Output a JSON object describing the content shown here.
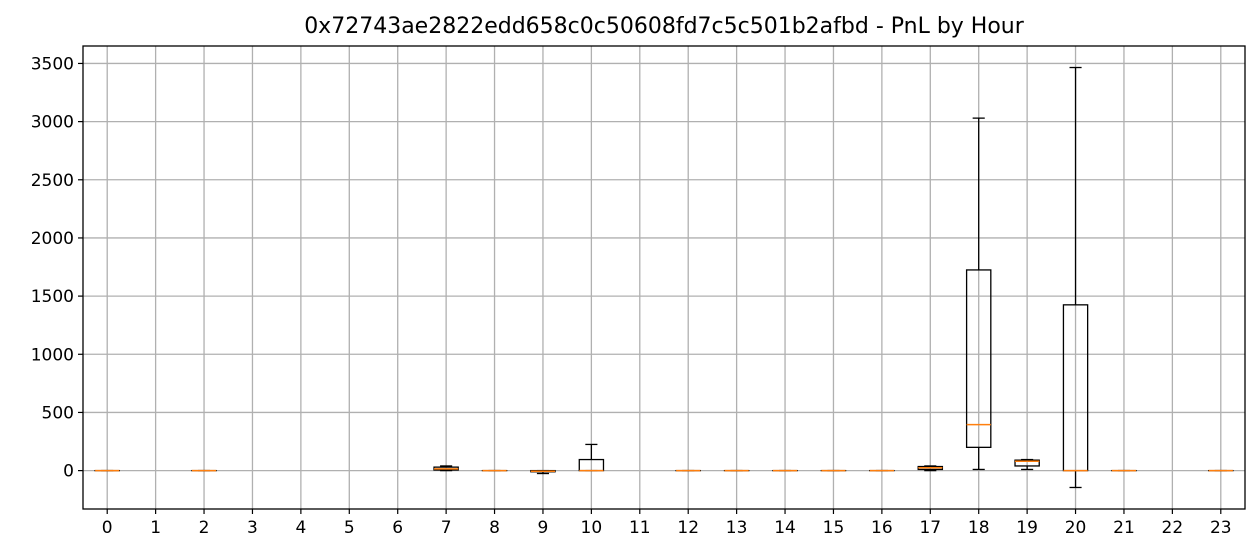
{
  "chart_data": {
    "type": "box",
    "title": "0x72743ae2822edd658c0c50608fd7c5c501b2afbd - PnL by Hour",
    "xlabel": "",
    "ylabel": "",
    "categories": [
      "0",
      "1",
      "2",
      "3",
      "4",
      "5",
      "6",
      "7",
      "8",
      "9",
      "10",
      "11",
      "12",
      "13",
      "14",
      "15",
      "16",
      "17",
      "18",
      "19",
      "20",
      "21",
      "22",
      "23"
    ],
    "ylim": [
      -330,
      3650
    ],
    "yticks": [
      0,
      500,
      1000,
      1500,
      2000,
      2500,
      3000,
      3500
    ],
    "grid": true,
    "colors": {
      "box": "#000000",
      "median": "#ff7f0e",
      "grid": "#b0b0b0"
    },
    "boxes": [
      {
        "hour": "0",
        "whislo": 0,
        "q1": 0,
        "med": 0,
        "q3": 0,
        "whishi": 0
      },
      {
        "hour": "2",
        "whislo": 0,
        "q1": 0,
        "med": 0,
        "q3": 0,
        "whishi": 0
      },
      {
        "hour": "7",
        "whislo": 0,
        "q1": 5,
        "med": 15,
        "q3": 30,
        "whishi": 40
      },
      {
        "hour": "8",
        "whislo": 0,
        "q1": 0,
        "med": 0,
        "q3": 0,
        "whishi": 0
      },
      {
        "hour": "9",
        "whislo": -25,
        "q1": -10,
        "med": -5,
        "q3": 0,
        "whishi": 0
      },
      {
        "hour": "10",
        "whislo": 0,
        "q1": 0,
        "med": 0,
        "q3": 95,
        "whishi": 225
      },
      {
        "hour": "12",
        "whislo": 0,
        "q1": 0,
        "med": 0,
        "q3": 0,
        "whishi": 0
      },
      {
        "hour": "13",
        "whislo": 0,
        "q1": 0,
        "med": 0,
        "q3": 0,
        "whishi": 0
      },
      {
        "hour": "14",
        "whislo": 0,
        "q1": 0,
        "med": 0,
        "q3": 0,
        "whishi": 0
      },
      {
        "hour": "15",
        "whislo": 0,
        "q1": 0,
        "med": 0,
        "q3": 0,
        "whishi": 0
      },
      {
        "hour": "16",
        "whislo": 0,
        "q1": 0,
        "med": 0,
        "q3": 0,
        "whishi": 0
      },
      {
        "hour": "17",
        "whislo": 0,
        "q1": 10,
        "med": 25,
        "q3": 35,
        "whishi": 40
      },
      {
        "hour": "18",
        "whislo": 10,
        "q1": 200,
        "med": 395,
        "q3": 1725,
        "whishi": 3030
      },
      {
        "hour": "19",
        "whislo": 10,
        "q1": 40,
        "med": 80,
        "q3": 90,
        "whishi": 95
      },
      {
        "hour": "20",
        "whislo": -145,
        "q1": 0,
        "med": 0,
        "q3": 1425,
        "whishi": 3465
      },
      {
        "hour": "21",
        "whislo": 0,
        "q1": 0,
        "med": 0,
        "q3": 0,
        "whishi": 0
      },
      {
        "hour": "23",
        "whislo": 0,
        "q1": 0,
        "med": 0,
        "q3": 0,
        "whishi": 0
      }
    ]
  }
}
